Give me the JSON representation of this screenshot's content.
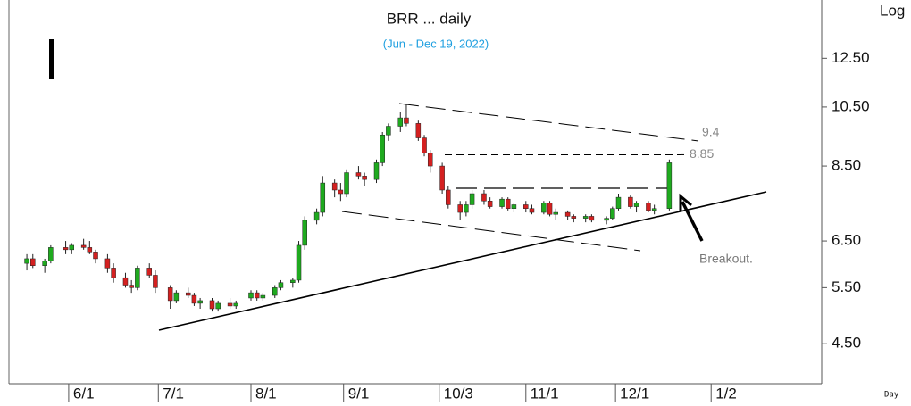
{
  "chart_data": {
    "type": "candlestick",
    "title": "BRR ... daily",
    "subtitle": "(Jun - Dec 19, 2022)",
    "y_scale_label": "Log",
    "x_axis_label": "Day",
    "log_scale": true,
    "up_color": "#1faa1f",
    "down_color": "#d42020",
    "xlim": [
      "5/12",
      "2/8"
    ],
    "xticks": [
      "6/1",
      "7/1",
      "8/1",
      "9/1",
      "10/3",
      "11/1",
      "12/1",
      "1/2"
    ],
    "ylim": [
      3.9,
      15.4
    ],
    "yticks": [
      {
        "value": 4.5,
        "label": "4.50"
      },
      {
        "value": 5.5,
        "label": "5.50"
      },
      {
        "value": 6.5,
        "label": "6.50"
      },
      {
        "value": 8.5,
        "label": "8.50"
      },
      {
        "value": 10.5,
        "label": "10.50"
      },
      {
        "value": 12.5,
        "label": "12.50"
      }
    ],
    "levels": [
      9.4,
      8.85
    ],
    "annotation": "Breakout.",
    "x": [
      "5/18",
      "5/20",
      "5/24",
      "5/26",
      "5/31",
      "6/2",
      "6/6",
      "6/8",
      "6/10",
      "6/14",
      "6/16",
      "6/20",
      "6/22",
      "6/24",
      "6/28",
      "6/30",
      "7/5",
      "7/7",
      "7/11",
      "7/13",
      "7/15",
      "7/19",
      "7/21",
      "7/25",
      "7/27",
      "8/1",
      "8/3",
      "8/5",
      "8/9",
      "8/11",
      "8/15",
      "8/17",
      "8/19",
      "8/23",
      "8/25",
      "8/29",
      "8/31",
      "9/2",
      "9/6",
      "9/8",
      "9/12",
      "9/14",
      "9/16",
      "9/20",
      "9/22",
      "9/26",
      "9/28",
      "9/30",
      "10/4",
      "10/6",
      "10/10",
      "10/12",
      "10/14",
      "10/18",
      "10/20",
      "10/24",
      "10/26",
      "10/28",
      "11/1",
      "11/3",
      "11/7",
      "11/9",
      "11/11",
      "11/15",
      "11/17",
      "11/21",
      "11/23",
      "11/28",
      "11/30",
      "12/2",
      "12/6",
      "12/8",
      "12/12",
      "12/14",
      "12/19"
    ],
    "open": [
      6.0,
      6.1,
      5.95,
      6.05,
      6.35,
      6.3,
      6.4,
      6.35,
      6.25,
      6.1,
      5.9,
      5.7,
      5.55,
      5.5,
      5.9,
      5.75,
      5.5,
      5.25,
      5.4,
      5.35,
      5.2,
      5.25,
      5.1,
      5.2,
      5.15,
      5.3,
      5.4,
      5.3,
      5.35,
      5.5,
      5.6,
      5.65,
      6.4,
      7.0,
      7.2,
      8.0,
      7.8,
      7.7,
      8.3,
      8.2,
      8.1,
      8.6,
      9.5,
      9.8,
      10.1,
      9.9,
      9.4,
      8.9,
      8.5,
      7.8,
      7.4,
      7.2,
      7.4,
      7.7,
      7.5,
      7.35,
      7.55,
      7.3,
      7.4,
      7.3,
      7.2,
      7.45,
      7.15,
      7.2,
      7.1,
      7.05,
      7.1,
      7.0,
      7.05,
      7.3,
      7.6,
      7.35,
      7.45,
      7.25,
      7.3
    ],
    "high": [
      6.2,
      6.2,
      6.1,
      6.4,
      6.5,
      6.45,
      6.55,
      6.5,
      6.3,
      6.2,
      6.0,
      5.8,
      5.65,
      5.95,
      6.0,
      5.85,
      5.55,
      5.45,
      5.5,
      5.4,
      5.3,
      5.3,
      5.25,
      5.3,
      5.25,
      5.45,
      5.45,
      5.4,
      5.55,
      5.65,
      5.7,
      6.5,
      7.1,
      7.3,
      8.2,
      8.1,
      8.0,
      8.4,
      8.5,
      8.3,
      8.7,
      9.6,
      9.9,
      10.3,
      10.6,
      10.0,
      9.5,
      9.0,
      8.6,
      7.9,
      7.5,
      7.5,
      7.8,
      7.8,
      7.6,
      7.6,
      7.6,
      7.45,
      7.5,
      7.4,
      7.5,
      7.5,
      7.3,
      7.25,
      7.15,
      7.15,
      7.15,
      7.1,
      7.35,
      7.7,
      7.65,
      7.5,
      7.5,
      7.4,
      8.7
    ],
    "low": [
      5.85,
      5.9,
      5.8,
      6.0,
      6.2,
      6.2,
      6.3,
      6.2,
      6.0,
      5.8,
      5.6,
      5.5,
      5.4,
      5.45,
      5.7,
      5.4,
      5.1,
      5.2,
      5.3,
      5.15,
      5.1,
      5.05,
      5.05,
      5.1,
      5.1,
      5.25,
      5.25,
      5.25,
      5.3,
      5.45,
      5.5,
      5.6,
      6.3,
      6.9,
      7.1,
      7.6,
      7.5,
      7.6,
      8.1,
      7.9,
      8.0,
      8.5,
      9.3,
      9.6,
      9.8,
      9.3,
      8.8,
      8.3,
      7.7,
      7.3,
      7.0,
      7.1,
      7.3,
      7.4,
      7.3,
      7.3,
      7.25,
      7.2,
      7.2,
      7.15,
      7.15,
      7.1,
      7.0,
      7.0,
      6.95,
      6.95,
      6.95,
      6.9,
      7.0,
      7.25,
      7.3,
      7.2,
      7.2,
      7.15,
      7.25
    ],
    "close": [
      6.1,
      5.95,
      6.05,
      6.35,
      6.3,
      6.4,
      6.35,
      6.25,
      6.1,
      5.9,
      5.7,
      5.55,
      5.5,
      5.9,
      5.75,
      5.5,
      5.25,
      5.4,
      5.35,
      5.2,
      5.25,
      5.1,
      5.2,
      5.15,
      5.2,
      5.4,
      5.3,
      5.35,
      5.5,
      5.6,
      5.65,
      6.4,
      7.0,
      7.2,
      8.0,
      7.8,
      7.7,
      8.3,
      8.2,
      8.1,
      8.6,
      9.5,
      9.8,
      10.1,
      9.9,
      9.4,
      8.9,
      8.5,
      7.8,
      7.4,
      7.2,
      7.4,
      7.7,
      7.5,
      7.35,
      7.55,
      7.3,
      7.4,
      7.3,
      7.2,
      7.45,
      7.15,
      7.2,
      7.1,
      7.05,
      7.1,
      7.0,
      7.05,
      7.3,
      7.6,
      7.35,
      7.45,
      7.25,
      7.3,
      8.6
    ]
  }
}
